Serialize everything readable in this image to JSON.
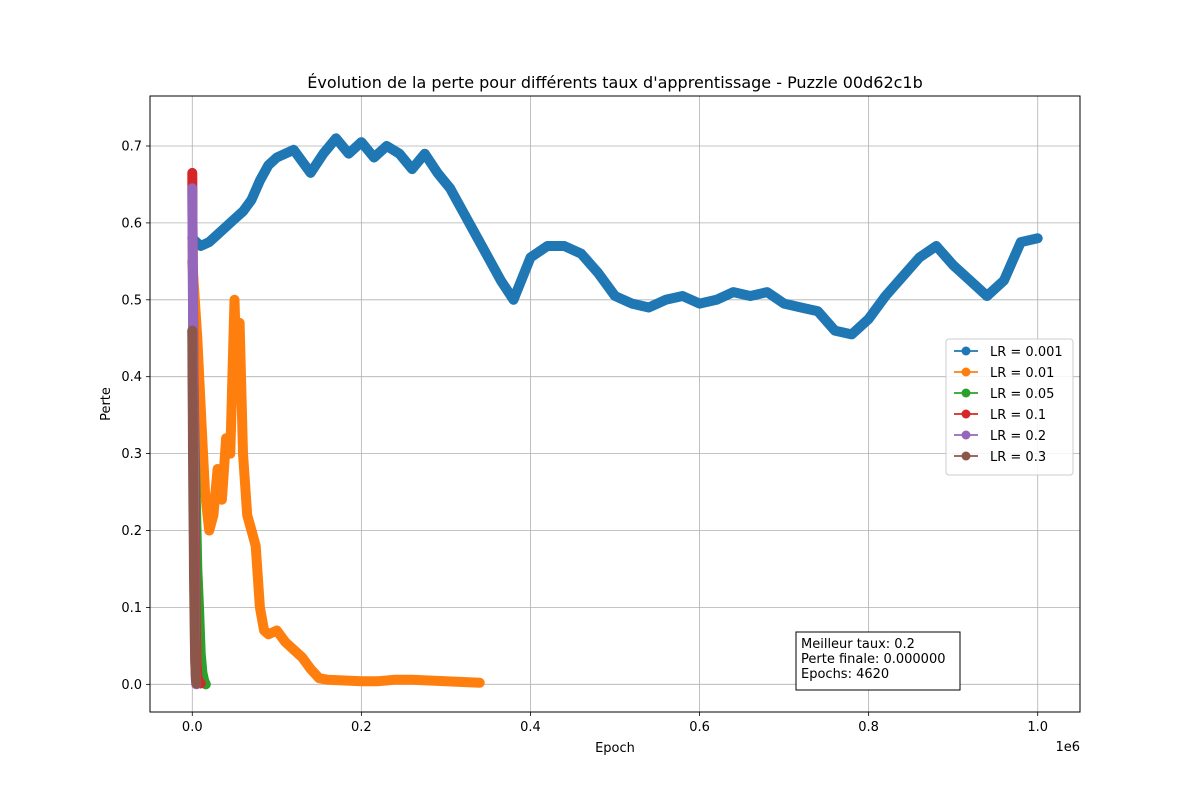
{
  "chart_data": {
    "type": "line",
    "title": "Évolution de la perte pour différents taux d'apprentissage - Puzzle 00d62c1b",
    "xlabel": "Epoch",
    "ylabel": "Perte",
    "x_scale_label": "1e6",
    "xlim": [
      -50000,
      1050000
    ],
    "ylim": [
      -0.036,
      0.765
    ],
    "x_ticks": [
      0.0,
      0.2,
      0.4,
      0.6,
      0.8,
      1.0
    ],
    "x_tick_labels": [
      "0.0",
      "0.2",
      "0.4",
      "0.6",
      "0.8",
      "1.0"
    ],
    "y_ticks": [
      0.0,
      0.1,
      0.2,
      0.3,
      0.4,
      0.5,
      0.6,
      0.7
    ],
    "y_tick_labels": [
      "0.0",
      "0.1",
      "0.2",
      "0.3",
      "0.4",
      "0.5",
      "0.6",
      "0.7"
    ],
    "grid": true,
    "legend_position": "center-right",
    "marker": "circle",
    "series": [
      {
        "name": "LR = 0.001",
        "color": "#1f77b4",
        "x": [
          0,
          10000,
          20000,
          30000,
          40000,
          50000,
          60000,
          70000,
          80000,
          90000,
          100000,
          120000,
          140000,
          155000,
          170000,
          185000,
          200000,
          215000,
          230000,
          245000,
          260000,
          275000,
          290000,
          305000,
          320000,
          335000,
          350000,
          365000,
          380000,
          400000,
          420000,
          440000,
          460000,
          480000,
          500000,
          520000,
          540000,
          560000,
          580000,
          600000,
          620000,
          640000,
          660000,
          680000,
          700000,
          720000,
          740000,
          760000,
          780000,
          800000,
          820000,
          840000,
          860000,
          880000,
          900000,
          920000,
          940000,
          960000,
          980000,
          1000000
        ],
        "y": [
          0.58,
          0.57,
          0.575,
          0.585,
          0.595,
          0.605,
          0.615,
          0.63,
          0.655,
          0.675,
          0.685,
          0.695,
          0.665,
          0.69,
          0.71,
          0.69,
          0.705,
          0.685,
          0.7,
          0.69,
          0.67,
          0.69,
          0.665,
          0.645,
          0.615,
          0.585,
          0.555,
          0.525,
          0.5,
          0.555,
          0.57,
          0.57,
          0.56,
          0.535,
          0.505,
          0.495,
          0.49,
          0.5,
          0.505,
          0.495,
          0.5,
          0.51,
          0.505,
          0.51,
          0.495,
          0.49,
          0.485,
          0.46,
          0.455,
          0.475,
          0.505,
          0.53,
          0.555,
          0.57,
          0.545,
          0.525,
          0.505,
          0.525,
          0.575,
          0.58
        ]
      },
      {
        "name": "LR = 0.01",
        "color": "#ff7f0e",
        "x": [
          0,
          3000,
          6000,
          10000,
          15000,
          20000,
          25000,
          30000,
          35000,
          40000,
          45000,
          50000,
          53000,
          56000,
          60000,
          65000,
          70000,
          75000,
          80000,
          85000,
          90000,
          100000,
          110000,
          120000,
          130000,
          140000,
          150000,
          160000,
          180000,
          200000,
          220000,
          240000,
          260000,
          280000,
          300000,
          320000,
          340000
        ],
        "y": [
          0.55,
          0.5,
          0.45,
          0.36,
          0.25,
          0.2,
          0.22,
          0.28,
          0.24,
          0.32,
          0.3,
          0.5,
          0.38,
          0.47,
          0.3,
          0.22,
          0.2,
          0.18,
          0.1,
          0.07,
          0.065,
          0.07,
          0.055,
          0.045,
          0.035,
          0.02,
          0.008,
          0.006,
          0.005,
          0.004,
          0.004,
          0.006,
          0.006,
          0.005,
          0.004,
          0.003,
          0.002
        ]
      },
      {
        "name": "LR = 0.05",
        "color": "#2ca02c",
        "x": [
          0,
          1000,
          2000,
          3000,
          4000,
          5000,
          6000,
          8000,
          10000,
          12000,
          14000,
          16000
        ],
        "y": [
          0.46,
          0.42,
          0.36,
          0.3,
          0.25,
          0.2,
          0.15,
          0.1,
          0.04,
          0.015,
          0.005,
          0.0
        ]
      },
      {
        "name": "LR = 0.1",
        "color": "#d62728",
        "x": [
          0,
          300,
          600,
          900,
          1200,
          1600,
          2000,
          2500,
          3000,
          3500,
          4000,
          5000,
          6000,
          8000,
          10000
        ],
        "y": [
          0.665,
          0.6,
          0.55,
          0.5,
          0.45,
          0.4,
          0.34,
          0.28,
          0.2,
          0.14,
          0.08,
          0.03,
          0.01,
          0.003,
          0.001
        ]
      },
      {
        "name": "LR = 0.2",
        "color": "#9467bd",
        "x": [
          0,
          300,
          600,
          900,
          1200,
          1500,
          1800,
          2100,
          2400,
          2800,
          3200,
          3600,
          4000,
          4620
        ],
        "y": [
          0.645,
          0.6,
          0.55,
          0.49,
          0.42,
          0.36,
          0.3,
          0.24,
          0.18,
          0.12,
          0.07,
          0.03,
          0.01,
          0.0
        ]
      },
      {
        "name": "LR = 0.3",
        "color": "#8c564b",
        "x": [
          0,
          300,
          600,
          900,
          1200,
          1500,
          1800,
          2100,
          2500,
          3000,
          3500,
          4000,
          4500,
          5000
        ],
        "y": [
          0.46,
          0.4,
          0.35,
          0.3,
          0.25,
          0.22,
          0.18,
          0.14,
          0.1,
          0.06,
          0.03,
          0.015,
          0.005,
          0.001
        ]
      }
    ],
    "annotation": {
      "lines": [
        "Meilleur taux: 0.2",
        "Perte finale: 0.000000",
        "Epochs: 4620"
      ]
    }
  }
}
